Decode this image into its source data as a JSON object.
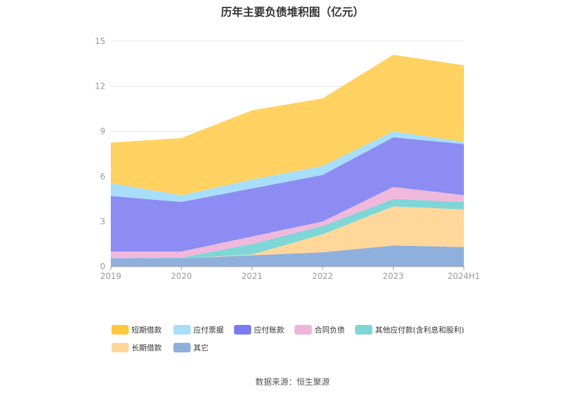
{
  "chart_data": {
    "type": "area",
    "stacked": true,
    "title": "历年主要负债堆积图（亿元）",
    "categories": [
      "2019",
      "2020",
      "2021",
      "2022",
      "2023",
      "2024H1"
    ],
    "ylim": [
      0,
      15
    ],
    "yticks": [
      0,
      3,
      6,
      9,
      12,
      15
    ],
    "grid": true,
    "legend_position": "bottom",
    "series": [
      {
        "name": "其它",
        "color": "#8FB0DD",
        "values": [
          0.55,
          0.55,
          0.75,
          0.95,
          1.4,
          1.3
        ]
      },
      {
        "name": "长期借款",
        "color": "#FFD79A",
        "values": [
          0.0,
          0.0,
          0.05,
          1.2,
          2.6,
          2.5
        ]
      },
      {
        "name": "其他应付款(含利息和股利)",
        "color": "#7FD6D6",
        "values": [
          0.0,
          0.05,
          0.7,
          0.55,
          0.5,
          0.5
        ]
      },
      {
        "name": "合同负债",
        "color": "#F0B8DC",
        "values": [
          0.45,
          0.4,
          0.5,
          0.3,
          0.8,
          0.45
        ]
      },
      {
        "name": "应付账款",
        "color": "#8C8CF2",
        "values": [
          3.7,
          3.3,
          3.2,
          3.1,
          3.3,
          3.4
        ]
      },
      {
        "name": "应付票据",
        "color": "#A8DEFA",
        "values": [
          0.85,
          0.45,
          0.6,
          0.6,
          0.4,
          0.15
        ]
      },
      {
        "name": "短期借款",
        "color": "#FFD261",
        "values": [
          2.7,
          3.8,
          4.6,
          4.5,
          5.1,
          5.1
        ]
      }
    ]
  },
  "legend": [
    {
      "label": "短期借款",
      "color": "#FFC83D"
    },
    {
      "label": "应付票据",
      "color": "#A8DEFA"
    },
    {
      "label": "应付账款",
      "color": "#7B7BF0"
    },
    {
      "label": "合同负债",
      "color": "#EDB5DA"
    },
    {
      "label": "其他应付款(含利息和股利)",
      "color": "#7FD6D6"
    },
    {
      "label": "长期借款",
      "color": "#FFD79A"
    },
    {
      "label": "其它",
      "color": "#8FB0DD"
    }
  ],
  "source": "数据来源：恒生聚源"
}
